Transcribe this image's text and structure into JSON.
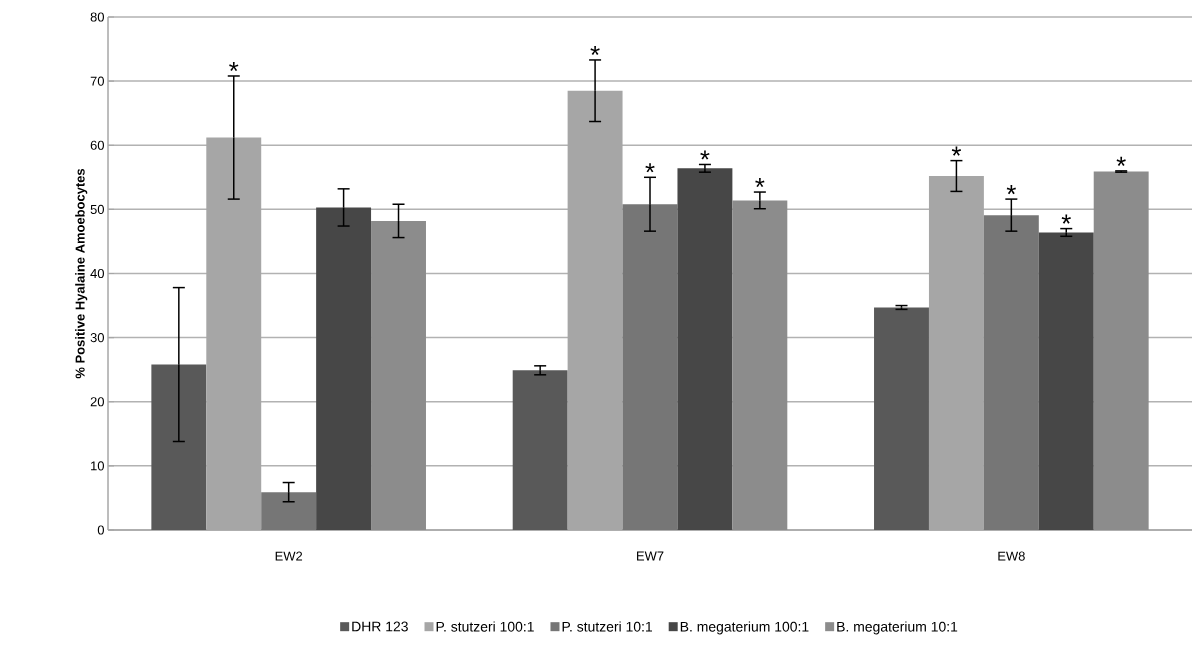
{
  "chart_data": {
    "type": "bar",
    "ylabel": "% Positive Hyalaine Amoebocytes",
    "categories": [
      "EW2",
      "EW7",
      "EW8"
    ],
    "series": [
      {
        "name": "DHR 123",
        "color": "#595959",
        "values": [
          25.8,
          24.9,
          34.7
        ],
        "errors": [
          12,
          0.7,
          0.3
        ],
        "value_labels": [
          null,
          null,
          null
        ]
      },
      {
        "name": "P. stutzeri 100:1",
        "color": "#a6a6a6",
        "values": [
          61.2,
          68.5,
          55.2
        ],
        "errors": [
          9.6,
          4.8,
          2.4
        ],
        "value_labels": [
          "*",
          "*",
          "*"
        ]
      },
      {
        "name": "P. stutzeri 10:1",
        "color": "#767676",
        "values": [
          5.9,
          50.8,
          49.1
        ],
        "errors": [
          1.5,
          4.2,
          2.5
        ],
        "value_labels": [
          null,
          "*",
          "*"
        ]
      },
      {
        "name": "B. megaterium 100:1",
        "color": "#474747",
        "values": [
          50.3,
          56.4,
          46.4
        ],
        "errors": [
          2.9,
          0.6,
          0.6
        ],
        "value_labels": [
          null,
          "*",
          "*"
        ]
      },
      {
        "name": "B. megaterium 10:1",
        "color": "#8c8c8c",
        "values": [
          48.2,
          51.4,
          55.9
        ],
        "errors": [
          2.6,
          1.3,
          0.1
        ],
        "value_labels": [
          null,
          "*",
          "*"
        ]
      }
    ],
    "ylim": [
      0,
      80
    ],
    "yticks": [
      0,
      10,
      20,
      30,
      40,
      50,
      60,
      70,
      80
    ],
    "grid": "y",
    "legend": "bottom"
  }
}
